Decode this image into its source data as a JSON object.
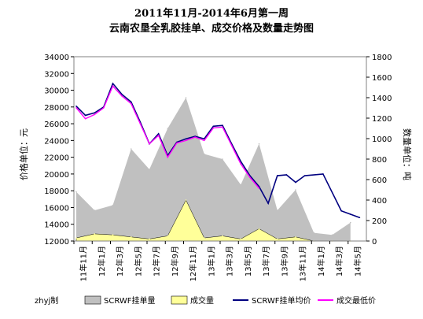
{
  "chart_data": {
    "type": "line",
    "title_line1": "2011年11月-2014年6月第一周",
    "title_line2": "云南农垦全乳胶挂单、成交价格及数量走势图",
    "ylabel_left": "价格单位：元",
    "ylabel_right": "数量单位：吨",
    "ylim_left": [
      12000,
      34000
    ],
    "ylim_right": [
      0,
      1800
    ],
    "yticks_left": [
      "12000",
      "14000",
      "16000",
      "18000",
      "20000",
      "22000",
      "24000",
      "26000",
      "28000",
      "30000",
      "32000",
      "34000"
    ],
    "yticks_right": [
      "0",
      "200",
      "400",
      "600",
      "800",
      "1000",
      "1200",
      "1400",
      "1600",
      "1800"
    ],
    "x_categories": [
      "11年11月",
      "12年1月",
      "12年3月",
      "12年5月",
      "12年7月",
      "12年9月",
      "12年11月",
      "13年1月",
      "13年3月",
      "13年5月",
      "13年7月",
      "13年9月",
      "13年11月",
      "14年1月",
      "14年3月",
      "14年5月"
    ],
    "grid": false,
    "legend_position": "bottom",
    "credit": "zhyj制",
    "colors": {
      "listing_volume": "#c0c0c0",
      "deal_volume": "#ffff99",
      "listing_price": "#000080",
      "deal_low_price": "#ff00ff"
    },
    "series": [
      {
        "name": "SCRWF挂单量",
        "type": "area",
        "axis": "right",
        "x": [
          0,
          1,
          2,
          3,
          4,
          5,
          6,
          7,
          8,
          9,
          10,
          11,
          12,
          13,
          14,
          15
        ],
        "values": [
          480,
          300,
          350,
          900,
          700,
          1100,
          1400,
          850,
          800,
          550,
          950,
          300,
          500,
          80,
          60,
          180
        ]
      },
      {
        "name": "成交量",
        "type": "area",
        "axis": "right",
        "x": [
          0,
          1,
          2,
          3,
          4,
          5,
          6,
          7,
          8,
          9,
          10,
          11,
          12,
          13,
          14,
          15
        ],
        "values": [
          30,
          70,
          60,
          40,
          20,
          50,
          400,
          30,
          50,
          20,
          120,
          20,
          40,
          0,
          0,
          0
        ]
      },
      {
        "name": "SCRWF挂单均价",
        "type": "line",
        "axis": "left",
        "x": [
          0,
          0.5,
          1,
          1.5,
          2,
          2.5,
          3,
          3.5,
          4,
          4.5,
          5,
          5.5,
          6,
          6.5,
          7,
          7.5,
          8,
          8.5,
          9,
          9.5,
          10,
          10.5,
          11,
          11.5,
          12,
          12.5,
          13.5,
          14.5,
          15,
          15.5
        ],
        "values": [
          28100,
          27000,
          27300,
          28000,
          30800,
          29500,
          28600,
          26200,
          23600,
          24800,
          22200,
          23800,
          24200,
          24500,
          24200,
          25700,
          25800,
          23600,
          21500,
          19800,
          18500,
          16500,
          19800,
          19900,
          19000,
          19800,
          20000,
          15600,
          15200,
          14800
        ]
      },
      {
        "name": "成交最低价",
        "type": "line",
        "axis": "left",
        "x": [
          0,
          0.5,
          1,
          1.5,
          2,
          2.5,
          3,
          3.5,
          4,
          4.5,
          5,
          5.5,
          6,
          6.5,
          7,
          7.5,
          8,
          8.5,
          9,
          9.5,
          10
        ],
        "values": [
          27900,
          26600,
          27100,
          27900,
          30500,
          29300,
          28400,
          26000,
          23600,
          24600,
          22000,
          23700,
          24000,
          24400,
          24000,
          25500,
          25600,
          23400,
          21200,
          19600,
          18300
        ]
      }
    ]
  }
}
